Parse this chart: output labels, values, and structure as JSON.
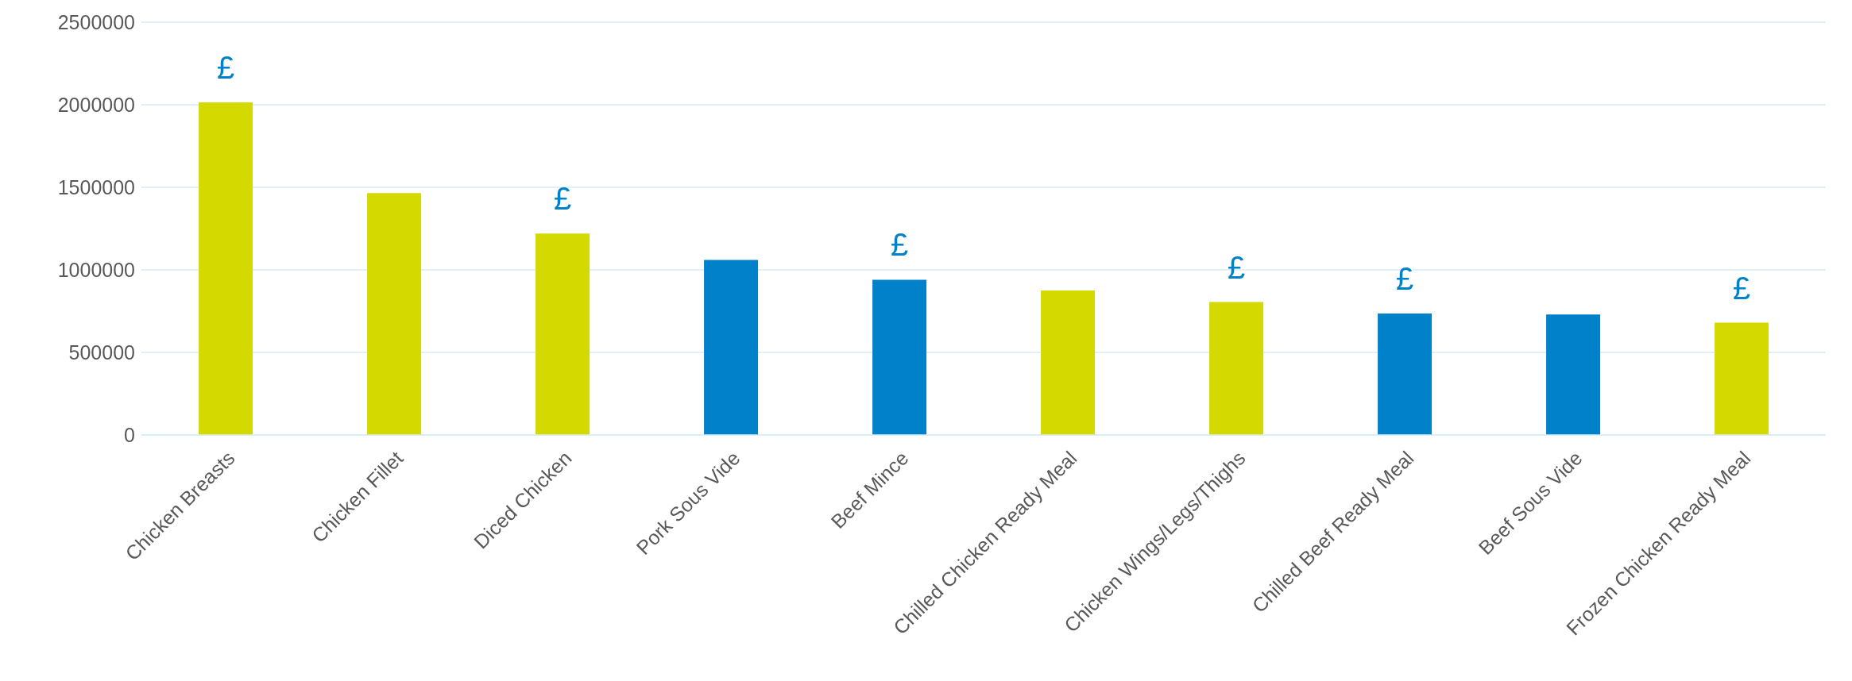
{
  "chart_data": {
    "type": "bar",
    "categories": [
      "Chicken Breasts",
      "Chicken Fillet",
      "Diced Chicken",
      "Pork Sous Vide",
      "Beef Mince",
      "Chilled Chicken Ready Meal",
      "Chicken Wings/Legs/Thighs",
      "Chilled Beef Ready Meal",
      "Beef Sous Vide",
      "Frozen Chicken Ready Meal"
    ],
    "values": [
      2015000,
      1465000,
      1220000,
      1060000,
      940000,
      875000,
      805000,
      735000,
      730000,
      680000
    ],
    "colors": [
      "#d4d900",
      "#d4d900",
      "#d4d900",
      "#0081c9",
      "#0081c9",
      "#d4d900",
      "#d4d900",
      "#0081c9",
      "#0081c9",
      "#d4d900"
    ],
    "ylim": [
      0,
      2500000
    ],
    "yticks": [
      0,
      500000,
      1000000,
      1500000,
      2000000,
      2500000
    ],
    "grid": "y",
    "annotations": [
      {
        "text": "£",
        "x": "Chicken Breasts",
        "y": 2015000
      },
      {
        "text": "£",
        "x": "Diced Chicken",
        "y": 1220000
      },
      {
        "text": "£",
        "x": "Beef Mince",
        "y": 940000
      },
      {
        "text": "£",
        "x": "Chicken Wings/Legs/Thighs",
        "y": 805000
      },
      {
        "text": "£",
        "x": "Chilled Beef Ready Meal",
        "y": 735000
      },
      {
        "text": "£",
        "x": "Frozen Chicken Ready Meal",
        "y": 680000
      }
    ]
  }
}
